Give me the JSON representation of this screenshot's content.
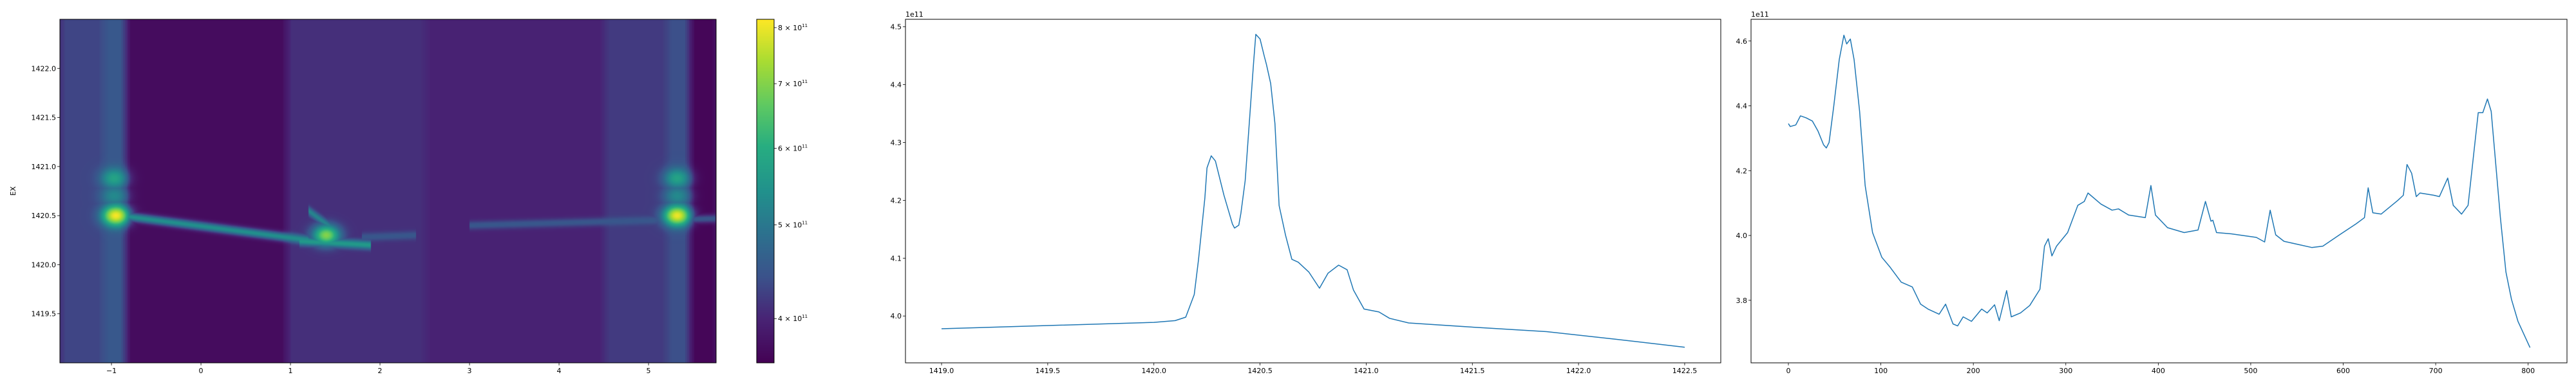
{
  "chart_data": [
    {
      "type": "heatmap",
      "ylabel": "EX",
      "xlim": [
        -1.576,
        5.755
      ],
      "ylim": [
        1419.0,
        1422.5
      ],
      "xticks": [
        -1,
        0,
        1,
        2,
        3,
        4,
        5
      ],
      "yticks": [
        1419.5,
        1420.0,
        1420.5,
        1421.0,
        1421.5,
        1422.0
      ],
      "colormap": "viridis",
      "colorbar": {
        "scale": "log",
        "range": [
          360000000000.0,
          816000000000.0
        ],
        "ticks": [
          {
            "value": 400000000000.0,
            "mantissa": "4",
            "base": "10",
            "exp": "11"
          },
          {
            "value": 500000000000.0,
            "mantissa": "5",
            "base": "10",
            "exp": "11"
          },
          {
            "value": 600000000000.0,
            "mantissa": "6",
            "base": "10",
            "exp": "11"
          },
          {
            "value": 700000000000.0,
            "mantissa": "7",
            "base": "10",
            "exp": "11"
          },
          {
            "value": 800000000000.0,
            "mantissa": "8",
            "base": "10",
            "exp": "11"
          }
        ]
      },
      "column_baseline": [
        {
          "x0": -1.576,
          "x1": -1.1,
          "v": 430000000000.0
        },
        {
          "x0": -1.1,
          "x1": -0.85,
          "v": 450000000000.0
        },
        {
          "x0": -0.85,
          "x1": 0.95,
          "v": 372000000000.0
        },
        {
          "x0": 0.95,
          "x1": 2.5,
          "v": 410000000000.0
        },
        {
          "x0": 2.5,
          "x1": 4.5,
          "v": 398000000000.0
        },
        {
          "x0": 4.5,
          "x1": 5.2,
          "v": 420000000000.0
        },
        {
          "x0": 5.2,
          "x1": 5.45,
          "v": 440000000000.0
        },
        {
          "x0": 5.45,
          "x1": 5.755,
          "v": 365000000000.0
        }
      ],
      "features": [
        {
          "x": -0.95,
          "y": 1420.5,
          "v": 810000000000.0
        },
        {
          "x": -0.97,
          "y": 1420.88,
          "v": 580000000000.0
        },
        {
          "x": -0.97,
          "y": 1420.7,
          "v": 530000000000.0
        },
        {
          "x": 1.4,
          "y": 1420.3,
          "v": 700000000000.0
        },
        {
          "x": 5.32,
          "y": 1420.5,
          "v": 800000000000.0
        },
        {
          "x": 5.32,
          "y": 1420.88,
          "v": 580000000000.0
        },
        {
          "x": 5.32,
          "y": 1420.7,
          "v": 530000000000.0
        }
      ],
      "ridges": [
        {
          "from": [
            -0.9,
            1420.5
          ],
          "to": [
            1.2,
            1420.25
          ],
          "v": 540000000000.0
        },
        {
          "from": [
            1.1,
            1420.24
          ],
          "to": [
            1.9,
            1420.2
          ],
          "v": 560000000000.0
        },
        {
          "from": [
            1.2,
            1420.55
          ],
          "to": [
            1.5,
            1420.35
          ],
          "v": 520000000000.0
        },
        {
          "from": [
            1.8,
            1420.28
          ],
          "to": [
            2.4,
            1420.3
          ],
          "v": 450000000000.0
        },
        {
          "from": [
            3.0,
            1420.4
          ],
          "to": [
            5.75,
            1420.47
          ],
          "v": 450000000000.0
        }
      ]
    },
    {
      "type": "line",
      "offset_label": "1e11",
      "xlim": [
        1418.83,
        1422.67
      ],
      "ylim": [
        3.919,
        4.513
      ],
      "xticks": [
        1419.0,
        1419.5,
        1420.0,
        1420.5,
        1421.0,
        1421.5,
        1422.0,
        1422.5
      ],
      "yticks": [
        4.0,
        4.1,
        4.2,
        4.3,
        4.4,
        4.5
      ],
      "color": "#1f77b4",
      "x": [
        1419.0,
        1420.0,
        1420.1,
        1420.15,
        1420.19,
        1420.21,
        1420.24,
        1420.25,
        1420.27,
        1420.29,
        1420.33,
        1420.37,
        1420.38,
        1420.4,
        1420.41,
        1420.43,
        1420.47,
        1420.48,
        1420.5,
        1420.52,
        1420.53,
        1420.55,
        1420.57,
        1420.59,
        1420.62,
        1420.64,
        1420.65,
        1420.68,
        1420.73,
        1420.78,
        1420.82,
        1420.87,
        1420.91,
        1420.94,
        1420.99,
        1421.06,
        1421.11,
        1421.2,
        1421.49,
        1421.85,
        1422.17,
        1422.5
      ],
      "y": [
        3.978,
        3.989,
        3.992,
        3.998,
        4.037,
        4.097,
        4.204,
        4.256,
        4.277,
        4.268,
        4.209,
        4.159,
        4.152,
        4.157,
        4.178,
        4.234,
        4.44,
        4.487,
        4.479,
        4.449,
        4.435,
        4.402,
        4.333,
        4.191,
        4.14,
        4.112,
        4.098,
        4.093,
        4.076,
        4.048,
        4.074,
        4.088,
        4.08,
        4.045,
        4.012,
        4.007,
        3.996,
        3.988,
        3.981,
        3.973,
        3.96,
        3.946
      ]
    },
    {
      "type": "line",
      "offset_label": "1e11",
      "xlim": [
        -40.4,
        842
      ],
      "ylim": [
        3.607,
        4.667
      ],
      "xticks": [
        0,
        100,
        200,
        300,
        400,
        500,
        600,
        700,
        800
      ],
      "yticks": [
        3.8,
        4.0,
        4.2,
        4.4,
        4.6
      ],
      "color": "#1f77b4",
      "x": [
        0,
        2,
        8,
        13,
        19,
        26,
        32,
        38,
        41,
        44,
        49,
        55,
        60,
        63,
        67,
        71,
        77,
        83,
        91,
        101,
        110,
        122,
        134,
        143,
        151,
        163,
        170,
        178,
        183,
        189,
        198,
        209,
        215,
        223,
        228,
        236,
        241,
        251,
        261,
        272,
        277,
        281,
        285,
        290,
        302,
        313,
        320,
        324,
        338,
        350,
        357,
        368,
        386,
        392,
        397,
        410,
        428,
        443,
        451,
        457,
        459,
        463,
        479,
        506,
        515,
        521,
        527,
        536,
        566,
        578,
        596,
        614,
        623,
        627,
        632,
        641,
        659,
        665,
        669,
        674,
        679,
        683,
        698,
        704,
        713,
        719,
        728,
        735,
        746,
        751,
        756,
        760,
        770,
        776,
        782,
        789,
        802
      ],
      "y": [
        4.345,
        4.336,
        4.341,
        4.369,
        4.363,
        4.353,
        4.322,
        4.28,
        4.27,
        4.287,
        4.398,
        4.543,
        4.618,
        4.591,
        4.606,
        4.543,
        4.383,
        4.154,
        4.009,
        3.933,
        3.902,
        3.856,
        3.841,
        3.788,
        3.773,
        3.757,
        3.788,
        3.727,
        3.721,
        3.749,
        3.735,
        3.773,
        3.761,
        3.786,
        3.737,
        3.83,
        3.749,
        3.761,
        3.784,
        3.834,
        3.967,
        3.99,
        3.937,
        3.967,
        4.009,
        4.093,
        4.105,
        4.131,
        4.097,
        4.078,
        4.082,
        4.063,
        4.055,
        4.154,
        4.063,
        4.024,
        4.009,
        4.017,
        4.105,
        4.044,
        4.047,
        4.009,
        4.005,
        3.994,
        3.98,
        4.078,
        4.002,
        3.982,
        3.963,
        3.967,
        4.002,
        4.036,
        4.055,
        4.147,
        4.07,
        4.066,
        4.108,
        4.124,
        4.219,
        4.192,
        4.12,
        4.131,
        4.124,
        4.12,
        4.177,
        4.093,
        4.066,
        4.093,
        4.379,
        4.379,
        4.421,
        4.383,
        4.055,
        3.887,
        3.803,
        3.735,
        3.654
      ]
    }
  ]
}
